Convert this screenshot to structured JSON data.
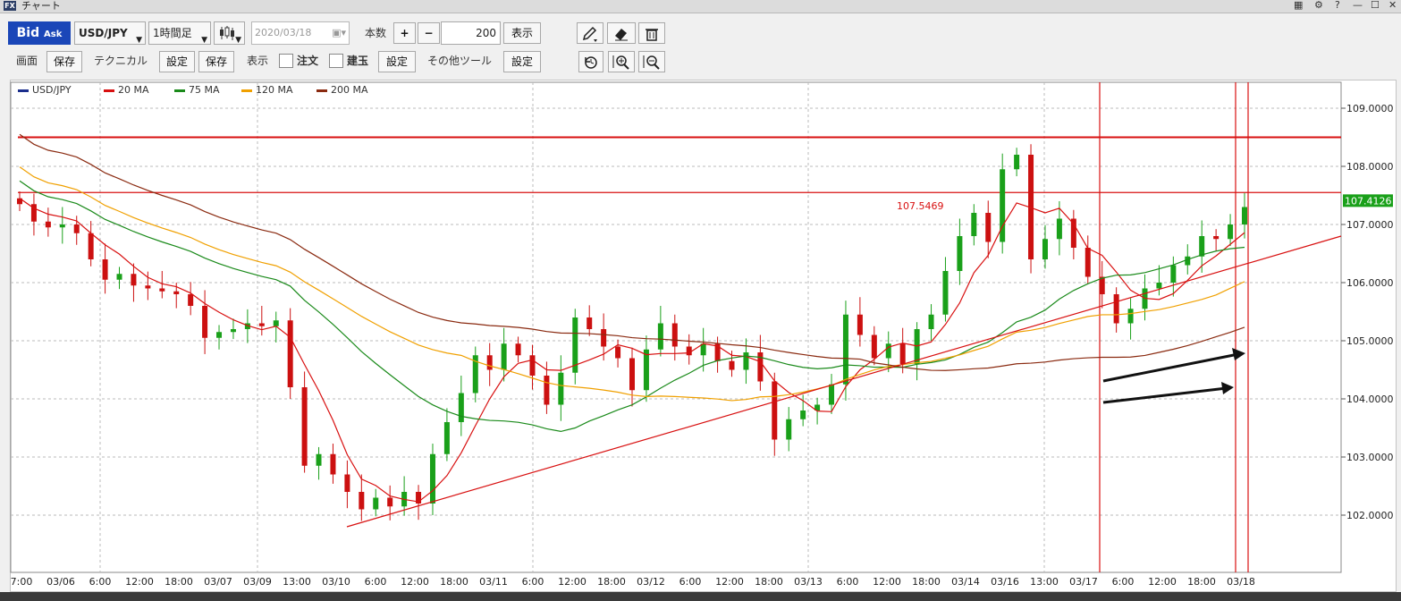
{
  "window": {
    "app_badge": "FX",
    "title": "チャート",
    "controls": [
      "▦",
      "⚙",
      "?",
      "—",
      "☐",
      "✕"
    ]
  },
  "toolbar1": {
    "bid": "Bid",
    "ask": "Ask",
    "pair": "USD/JPY",
    "timeframe": "1時間足",
    "chart_type_icon": "candlestick-icon",
    "date": "2020/03/18",
    "count_label": "本数",
    "plus": "+",
    "minus": "−",
    "count_value": "200",
    "show_button": "表示"
  },
  "toolbar2": {
    "screen_label": "画面",
    "screen_save": "保存",
    "technical_label": "テクニカル",
    "technical_settings": "設定",
    "technical_save": "保存",
    "display_label": "表示",
    "order_label": "注文",
    "position_label": "建玉",
    "display_settings": "設定",
    "tools_label": "その他ツール",
    "tools_settings": "設定"
  },
  "draw_tools": [
    "pencil-icon",
    "eraser-icon",
    "trash-icon",
    "reset-icon",
    "zoom-in-icon",
    "zoom-out-icon"
  ],
  "colors": {
    "usdjpy": "#1a2e8c",
    "ma20": "#d81010",
    "ma75": "#1a8a1a",
    "ma120": "#f0a000",
    "ma200": "#8a2a10",
    "up": "#1aa01a",
    "down": "#cc1010",
    "accent": "#1a46b8"
  },
  "chart_data": {
    "type": "candlestick",
    "legend": [
      {
        "name": "USD/JPY",
        "color": "#1a2e8c"
      },
      {
        "name": "20 MA",
        "color": "#d81010"
      },
      {
        "name": "75 MA",
        "color": "#1a8a1a"
      },
      {
        "name": "120 MA",
        "color": "#f0a000"
      },
      {
        "name": "200 MA",
        "color": "#8a2a10"
      }
    ],
    "y_ticks": [
      "109.0000",
      "108.0000",
      "107.0000",
      "106.0000",
      "105.0000",
      "104.0000",
      "103.0000",
      "102.0000"
    ],
    "ylim": [
      101.0,
      109.1
    ],
    "current_price": "107.4126",
    "annotation": "107.5469",
    "horizontal_lines": [
      108.5,
      107.55
    ],
    "x_labels": [
      "7:00",
      "03/06",
      "6:00",
      "12:00",
      "18:00",
      "03/07",
      "03/09",
      "13:00",
      "03/10",
      "6:00",
      "12:00",
      "18:00",
      "03/11",
      "6:00",
      "12:00",
      "18:00",
      "03/12",
      "6:00",
      "12:00",
      "18:00",
      "03/13",
      "6:00",
      "12:00",
      "18:00",
      "03/14",
      "03/16",
      "13:00",
      "03/17",
      "6:00",
      "12:00",
      "18:00",
      "03/18"
    ],
    "closes": [
      107.35,
      107.05,
      106.95,
      107.0,
      106.85,
      106.4,
      106.05,
      106.15,
      105.95,
      105.9,
      105.85,
      105.8,
      105.6,
      105.05,
      105.15,
      105.2,
      105.3,
      105.25,
      105.35,
      104.2,
      102.85,
      103.05,
      102.7,
      102.4,
      102.1,
      102.3,
      102.15,
      102.4,
      102.2,
      103.05,
      103.6,
      104.1,
      104.75,
      104.5,
      104.95,
      104.75,
      104.4,
      103.9,
      104.45,
      105.4,
      105.2,
      104.9,
      104.7,
      104.15,
      104.85,
      105.3,
      104.9,
      104.75,
      104.95,
      104.65,
      104.5,
      104.8,
      104.3,
      103.3,
      103.65,
      103.8,
      103.9,
      104.25,
      105.45,
      105.1,
      104.7,
      104.95,
      104.6,
      105.2,
      105.45,
      106.2,
      106.8,
      107.2,
      106.7,
      107.95,
      108.2,
      106.4,
      106.75,
      107.1,
      106.6,
      106.1,
      105.8,
      105.3,
      105.55,
      105.9,
      106.0,
      106.3,
      106.45,
      106.8,
      106.75,
      107.0,
      107.3
    ]
  },
  "vertical_markers": [
    "03/17 0:00",
    "03/18 0:00",
    "03/18 1:00"
  ]
}
